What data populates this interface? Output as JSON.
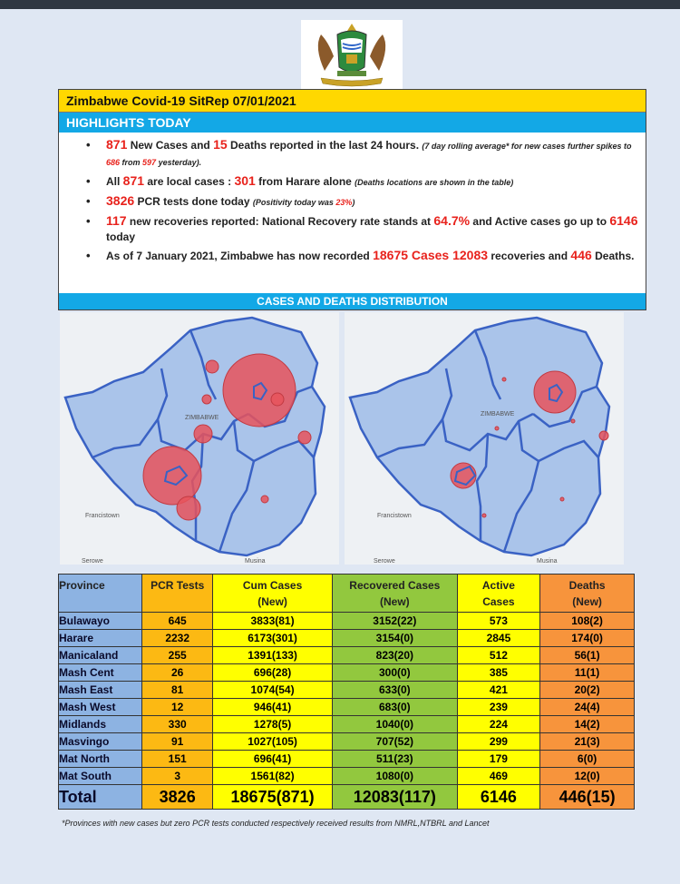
{
  "report": {
    "title": "Zimbabwe Covid-19 SitRep 07/01/2021",
    "highlights_title": "HIGHLIGHTS TODAY",
    "bullets": [
      {
        "n1": "871",
        "t1": " New Cases and ",
        "n2": "15",
        "t2": " Deaths reported in the last 24 hours. ",
        "s1": "(7 day rolling average* for new cases further spikes to ",
        "n3": "686",
        "s2": " from ",
        "n4": "597",
        "s3": " yesterday)."
      },
      {
        "t1": "All ",
        "n1": "871",
        "t2": " are local cases : ",
        "n2": "301",
        "t3": " from Harare alone ",
        "s1": "(Deaths locations are shown in the table)"
      },
      {
        "n1": "3826",
        "t1": " PCR tests done today ",
        "s1": "(Positivity today was ",
        "n2": "23%",
        "s2": ")"
      },
      {
        "n1": "117",
        "t1": " new recoveries reported: National Recovery rate stands at ",
        "n2": "64.7%",
        "t2": " and Active cases go up to ",
        "n3": "6146",
        "t3": " today"
      },
      {
        "t1": "As of 7 January 2021, Zimbabwe has now recorded ",
        "n1": "18675",
        "t2": "  Cases ",
        "n2": "12083",
        "t3": " recoveries and ",
        "n3": "446",
        "t4": " Deaths."
      }
    ],
    "distribution_title": "CASES AND DEATHS DISTRIBUTION"
  },
  "maps": {
    "country_label": "ZIMBABWE",
    "towns": [
      "Francistown",
      "Serowe",
      "Musina"
    ],
    "colors": {
      "bubble": "#e8545c",
      "province_fill": "#aac4ea",
      "border": "#3a62c4"
    }
  },
  "table": {
    "headers": {
      "province": "Province",
      "pcr": "PCR Tests",
      "cum_l1": "Cum Cases",
      "cum_l2": "(New)",
      "rec_l1": "Recovered Cases",
      "rec_l2": "(New)",
      "act_l1": "Active",
      "act_l2": "Cases",
      "dea_l1": "Deaths",
      "dea_l2": "(New)"
    },
    "rows": [
      {
        "province": "Bulawayo",
        "pcr": "645",
        "cum": "3833(81)",
        "rec": "3152(22)",
        "active": "573",
        "deaths": "108(2)"
      },
      {
        "province": "Harare",
        "pcr": "2232",
        "cum": "6173(301)",
        "rec": "3154(0)",
        "active": "2845",
        "deaths": "174(0)"
      },
      {
        "province": "Manicaland",
        "pcr": "255",
        "cum": "1391(133)",
        "rec": "823(20)",
        "active": "512",
        "deaths": "56(1)"
      },
      {
        "province": "Mash Cent",
        "pcr": "26",
        "cum": "696(28)",
        "rec": "300(0)",
        "active": "385",
        "deaths": "11(1)"
      },
      {
        "province": "Mash East",
        "pcr": "81",
        "cum": "1074(54)",
        "rec": "633(0)",
        "active": "421",
        "deaths": "20(2)"
      },
      {
        "province": "Mash West",
        "pcr": "12",
        "cum": "946(41)",
        "rec": "683(0)",
        "active": "239",
        "deaths": "24(4)"
      },
      {
        "province": "Midlands",
        "pcr": "330",
        "cum": "1278(5)",
        "rec": "1040(0)",
        "active": "224",
        "deaths": "14(2)"
      },
      {
        "province": "Masvingo",
        "pcr": "91",
        "cum": "1027(105)",
        "rec": "707(52)",
        "active": "299",
        "deaths": "21(3)"
      },
      {
        "province": "Mat North",
        "pcr": "151",
        "cum": "696(41)",
        "rec": "511(23)",
        "active": "179",
        "deaths": "6(0)"
      },
      {
        "province": "Mat South",
        "pcr": "3",
        "cum": "1561(82)",
        "rec": "1080(0)",
        "active": "469",
        "deaths": "12(0)"
      }
    ],
    "total": {
      "label": "Total",
      "pcr": "3826",
      "cum": "18675(871)",
      "rec": "12083(117)",
      "active": "6146",
      "deaths": "446(15)"
    }
  },
  "footnote": "*Provinces  with new cases but zero  PCR tests conducted respectively received results from NMRL,NTBRL and Lancet"
}
